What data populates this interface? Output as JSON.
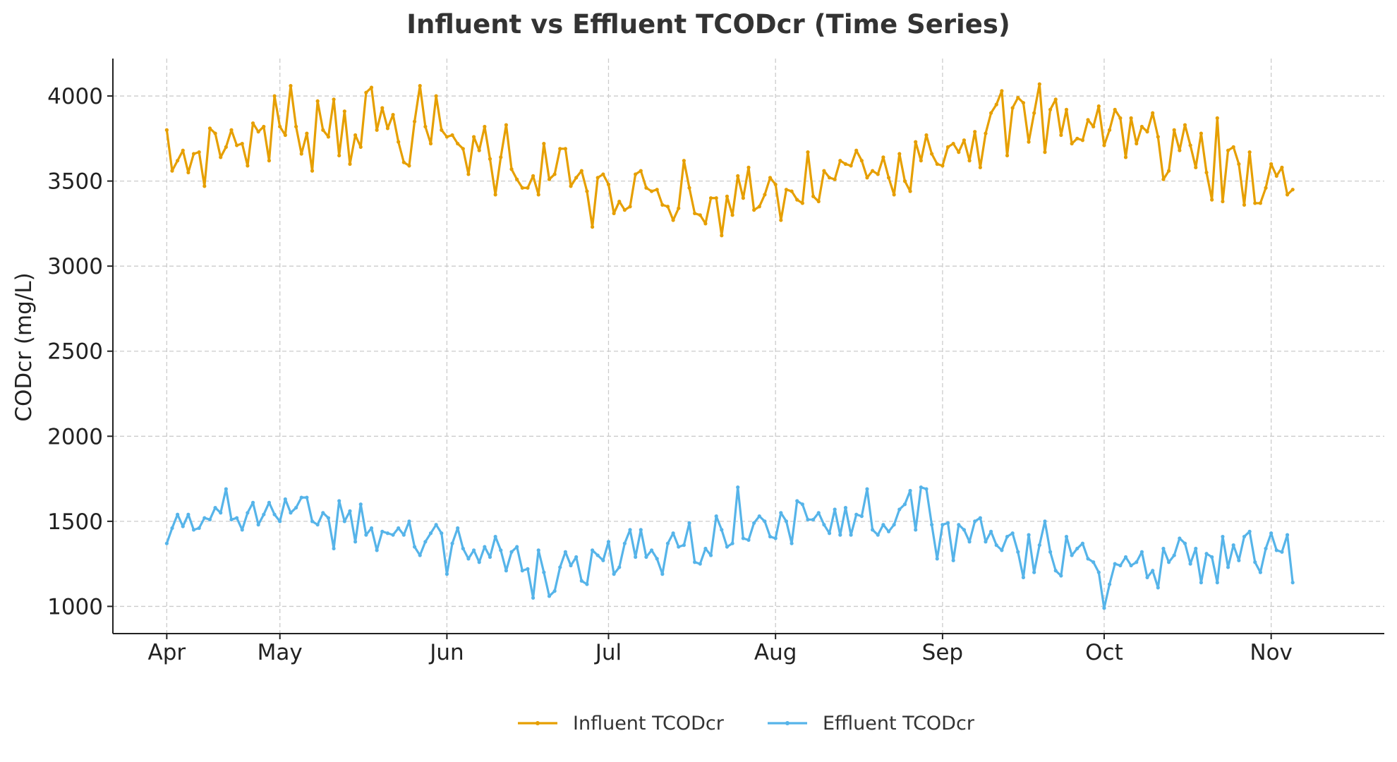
{
  "chart_data": {
    "type": "line",
    "title": "Influent vs Effluent TCODcr (Time Series)",
    "xlabel": "",
    "ylabel": "CODcr (mg/L)",
    "ylim": [
      840,
      4220
    ],
    "xlim": [
      -10,
      226
    ],
    "yticks": [
      1000,
      1500,
      2000,
      2500,
      3000,
      3500,
      4000
    ],
    "xticks": [
      {
        "day": 0,
        "label": "Apr"
      },
      {
        "day": 21,
        "label": "May"
      },
      {
        "day": 52,
        "label": "Jun"
      },
      {
        "day": 82,
        "label": "Jul"
      },
      {
        "day": 113,
        "label": "Aug"
      },
      {
        "day": 144,
        "label": "Sep"
      },
      {
        "day": 174,
        "label": "Oct"
      },
      {
        "day": 205,
        "label": "Nov"
      }
    ],
    "grid": true,
    "legend_position": "bottom-center",
    "series": [
      {
        "name": "Influent TCODcr",
        "color": "#E69F00",
        "values": [
          3800,
          3560,
          3620,
          3680,
          3550,
          3660,
          3670,
          3470,
          3810,
          3780,
          3640,
          3700,
          3800,
          3710,
          3720,
          3590,
          3840,
          3790,
          3820,
          3620,
          4000,
          3820,
          3770,
          4060,
          3820,
          3660,
          3780,
          3560,
          3970,
          3800,
          3760,
          3980,
          3650,
          3910,
          3600,
          3770,
          3700,
          4020,
          4050,
          3800,
          3930,
          3810,
          3890,
          3730,
          3610,
          3590,
          3850,
          4060,
          3820,
          3720,
          4000,
          3800,
          3760,
          3770,
          3720,
          3690,
          3540,
          3760,
          3680,
          3820,
          3630,
          3420,
          3640,
          3830,
          3570,
          3510,
          3460,
          3460,
          3530,
          3420,
          3720,
          3510,
          3540,
          3690,
          3690,
          3470,
          3520,
          3560,
          3440,
          3230,
          3520,
          3540,
          3480,
          3310,
          3380,
          3330,
          3350,
          3540,
          3560,
          3460,
          3440,
          3450,
          3360,
          3350,
          3270,
          3340,
          3620,
          3460,
          3310,
          3300,
          3250,
          3400,
          3400,
          3180,
          3410,
          3300,
          3530,
          3400,
          3580,
          3330,
          3350,
          3420,
          3520,
          3480,
          3270,
          3450,
          3440,
          3390,
          3370,
          3670,
          3410,
          3380,
          3560,
          3520,
          3510,
          3620,
          3600,
          3590,
          3680,
          3620,
          3520,
          3560,
          3540,
          3640,
          3520,
          3420,
          3660,
          3500,
          3440,
          3730,
          3620,
          3770,
          3660,
          3600,
          3590,
          3700,
          3720,
          3670,
          3740,
          3620,
          3790,
          3580,
          3780,
          3900,
          3950,
          4030,
          3650,
          3930,
          3990,
          3960,
          3730,
          3900,
          4070,
          3670,
          3920,
          3980,
          3770,
          3920,
          3720,
          3750,
          3740,
          3860,
          3820,
          3940,
          3710,
          3800,
          3920,
          3870,
          3640,
          3870,
          3720,
          3820,
          3790,
          3900,
          3760,
          3510,
          3560,
          3800,
          3680,
          3830,
          3710,
          3580,
          3780,
          3550,
          3390,
          3870,
          3380,
          3680,
          3700,
          3600,
          3360,
          3670,
          3370,
          3370,
          3460,
          3600,
          3530,
          3580,
          3420,
          3450
        ]
      },
      {
        "name": "Effluent TCODcr",
        "color": "#56B4E9",
        "values": [
          1370,
          1460,
          1540,
          1470,
          1540,
          1450,
          1460,
          1520,
          1510,
          1580,
          1550,
          1690,
          1510,
          1520,
          1450,
          1550,
          1610,
          1480,
          1540,
          1610,
          1540,
          1500,
          1630,
          1550,
          1580,
          1640,
          1640,
          1500,
          1480,
          1550,
          1520,
          1340,
          1620,
          1500,
          1560,
          1380,
          1600,
          1420,
          1460,
          1330,
          1440,
          1430,
          1420,
          1460,
          1420,
          1500,
          1350,
          1300,
          1380,
          1430,
          1480,
          1430,
          1190,
          1370,
          1460,
          1340,
          1280,
          1330,
          1260,
          1350,
          1290,
          1410,
          1330,
          1210,
          1320,
          1350,
          1210,
          1220,
          1050,
          1330,
          1200,
          1060,
          1090,
          1230,
          1320,
          1240,
          1290,
          1150,
          1130,
          1330,
          1300,
          1270,
          1380,
          1190,
          1230,
          1370,
          1450,
          1290,
          1450,
          1290,
          1330,
          1280,
          1190,
          1370,
          1430,
          1350,
          1360,
          1490,
          1260,
          1250,
          1340,
          1300,
          1530,
          1450,
          1350,
          1370,
          1700,
          1400,
          1390,
          1490,
          1530,
          1500,
          1410,
          1400,
          1550,
          1500,
          1370,
          1620,
          1600,
          1510,
          1510,
          1550,
          1480,
          1430,
          1570,
          1420,
          1580,
          1420,
          1540,
          1530,
          1690,
          1450,
          1420,
          1480,
          1440,
          1480,
          1570,
          1600,
          1680,
          1450,
          1700,
          1690,
          1480,
          1280,
          1480,
          1490,
          1270,
          1480,
          1450,
          1380,
          1500,
          1520,
          1380,
          1440,
          1360,
          1330,
          1410,
          1430,
          1320,
          1170,
          1420,
          1200,
          1360,
          1500,
          1320,
          1210,
          1180,
          1410,
          1300,
          1340,
          1370,
          1280,
          1260,
          1200,
          990,
          1130,
          1250,
          1240,
          1290,
          1240,
          1260,
          1320,
          1170,
          1210,
          1110,
          1340,
          1260,
          1300,
          1400,
          1370,
          1250,
          1340,
          1140,
          1310,
          1290,
          1140,
          1410,
          1230,
          1360,
          1270,
          1410,
          1440,
          1260,
          1200,
          1340,
          1430,
          1330,
          1320,
          1420,
          1140
        ]
      }
    ]
  }
}
